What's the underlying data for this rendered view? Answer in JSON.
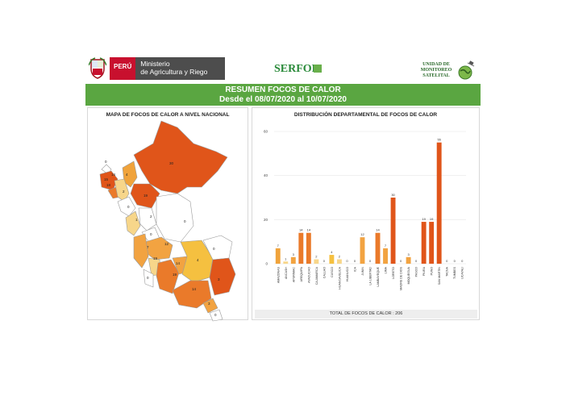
{
  "header": {
    "peru_label": "PERÚ",
    "ministry_line1": "Ministerio",
    "ministry_line2": "de Agricultura y Riego",
    "serfor_label": "SERFOR",
    "unit_line1": "UNIDAD DE",
    "unit_line2": "MONITOREO",
    "unit_line3": "SATELITAL"
  },
  "banner": {
    "title": "RESUMEN FOCOS DE CALOR",
    "subtitle": "Desde el 08/07/2020 al 10/07/2020"
  },
  "map": {
    "title": "MAPA DE FOCOS DE CALOR A NIVEL NACIONAL",
    "region_labels": [
      "0",
      "15",
      "2",
      "4",
      "19",
      "14",
      "18",
      "0",
      "30",
      "14",
      "12",
      "7",
      "55",
      "0",
      "2",
      "1",
      "19",
      "14",
      "7",
      "9",
      "3",
      "1",
      "0",
      "0"
    ],
    "colors": {
      "high": "#e0551a",
      "mid_high": "#ea7a2a",
      "mid": "#f2a341",
      "low_mid": "#f5c040",
      "low": "#f7d68a",
      "zero": "#ffffff"
    }
  },
  "chart_data": {
    "type": "bar",
    "title": "DISTRIBUCIÓN DEPARTAMENTAL DE FOCOS DE CALOR",
    "categories": [
      "AMAZONAS",
      "ANCASH",
      "APURIMAC",
      "AREQUIPA",
      "AYACUCHO",
      "CAJAMARCA",
      "CALLAO",
      "CUSCO",
      "HUANCAVELICA",
      "HUANUCO",
      "ICA",
      "JUNIN",
      "LA LIBERTAD",
      "LAMBAYEQUE",
      "LIMA",
      "LORETO",
      "MADRE DE DIOS",
      "MOQUEGUA",
      "PASCO",
      "PIURA",
      "PUNO",
      "SAN MARTIN",
      "TACNA",
      "TUMBES",
      "UCAYALI"
    ],
    "values": [
      7,
      1,
      3,
      14,
      14,
      2,
      0,
      4,
      2,
      0,
      0,
      12,
      0,
      14,
      7,
      30,
      0,
      3,
      0,
      19,
      19,
      55,
      0,
      0,
      0
    ],
    "colors": [
      "#f0a33b",
      "#f7d68a",
      "#f2a341",
      "#ea7a2a",
      "#ea7a2a",
      "#f7d68a",
      "#f7d68a",
      "#f5c040",
      "#f7d68a",
      "#f7d68a",
      "#f7d68a",
      "#f2a341",
      "#f7d68a",
      "#ea7a2a",
      "#f2a341",
      "#e0551a",
      "#f7d68a",
      "#f2a341",
      "#f7d68a",
      "#e0551a",
      "#e0551a",
      "#e0551a",
      "#f7d68a",
      "#f7d68a",
      "#f7d68a"
    ],
    "yticks": [
      0,
      20,
      40,
      60
    ],
    "ylim": [
      0,
      60
    ],
    "grid": true
  },
  "total_label": "TOTAL DE FOCOS DE CALOR : 206"
}
